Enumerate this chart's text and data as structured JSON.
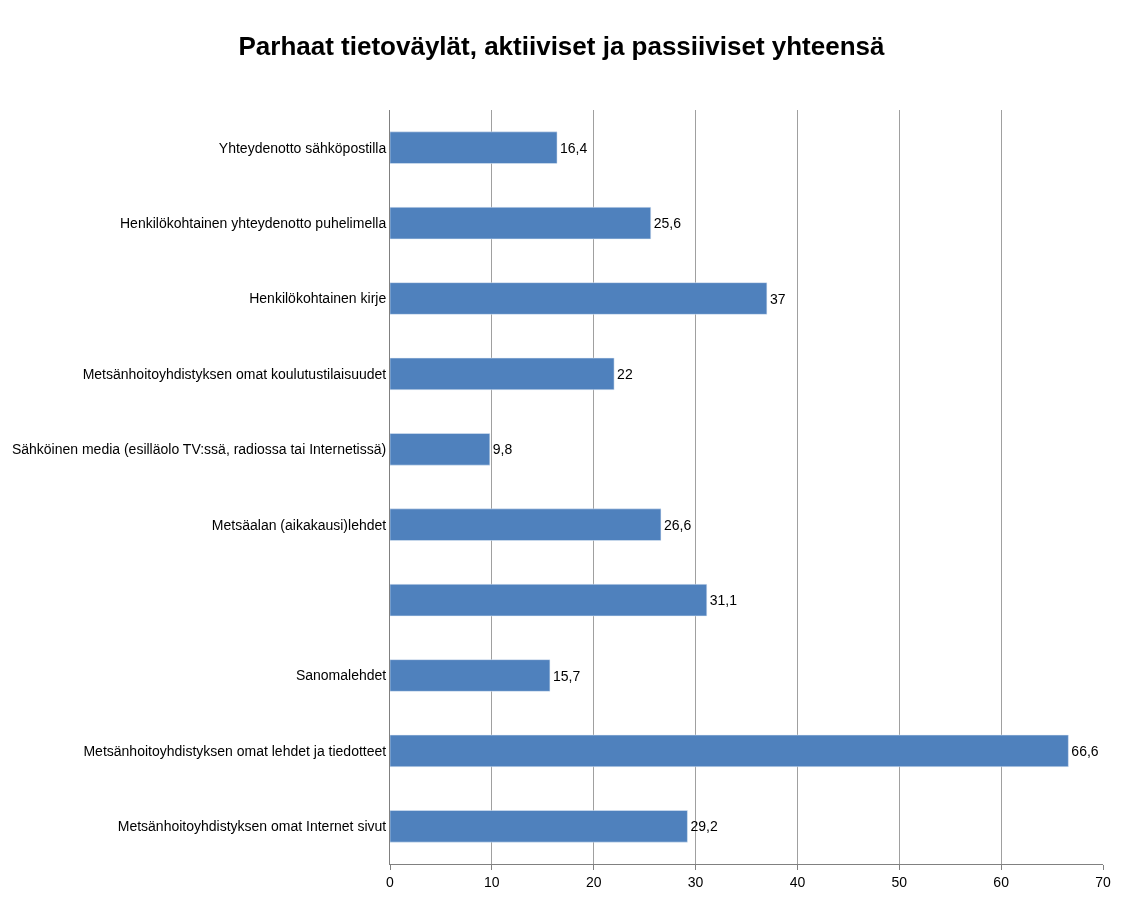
{
  "chart_data": {
    "type": "bar",
    "orientation": "horizontal",
    "title": "Parhaat tietoväylät, aktiiviset ja passiiviset yhteensä",
    "categories": [
      "Yhteydenotto sähköpostilla",
      "Henkilökohtainen yhteydenotto puhelimella",
      "Henkilökohtainen kirje",
      "Metsänhoitoyhdistyksen omat koulutustilaisuudet",
      "Sähköinen media (esilläolo TV:ssä, radiossa tai Internetissä)",
      "Metsäalan (aikakausi)lehdet",
      null,
      "Sanomalehdet",
      "Metsänhoitoyhdistyksen omat lehdet ja tiedotteet",
      "Metsänhoitoyhdistyksen omat Internet sivut"
    ],
    "values": [
      16.4,
      25.6,
      37,
      22,
      9.8,
      26.6,
      31.1,
      15.7,
      66.6,
      29.2
    ],
    "value_labels": [
      "16,4",
      "25,6",
      "37",
      "22",
      "9,8",
      "26,6",
      "31,1",
      "15,7",
      "66,6",
      "29,2"
    ],
    "color": "#4f81bd",
    "xlim": [
      0,
      70
    ],
    "xticks": [
      0,
      10,
      20,
      30,
      40,
      50,
      60,
      70
    ],
    "grid": "x",
    "legend": false
  }
}
